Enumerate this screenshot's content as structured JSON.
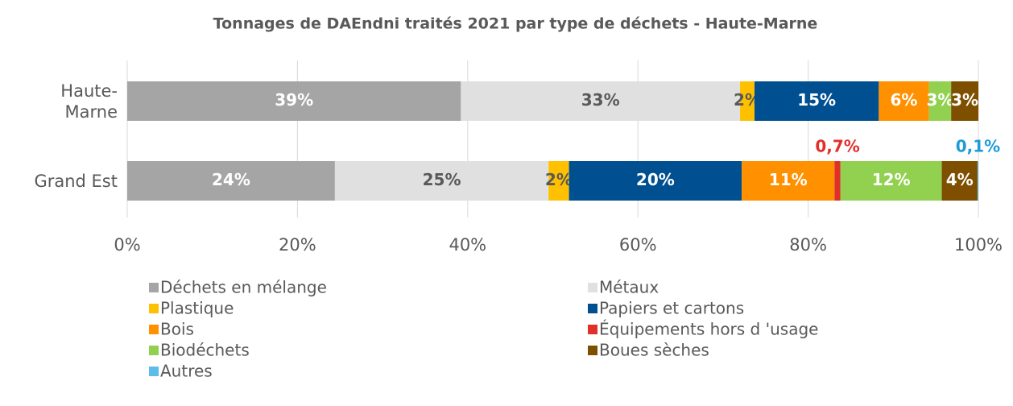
{
  "chart_data": {
    "type": "stacked-bar-horizontal",
    "title": "Tonnages de DAEndni traités 2021 par type de déchets - Haute-Marne",
    "categories": [
      "Haute-Marne",
      "Grand Est"
    ],
    "xlim": [
      0,
      100
    ],
    "xticks": [
      {
        "value": 0,
        "label": "0%"
      },
      {
        "value": 20,
        "label": "20%"
      },
      {
        "value": 40,
        "label": "40%"
      },
      {
        "value": 60,
        "label": "60%"
      },
      {
        "value": 80,
        "label": "80%"
      },
      {
        "value": 100,
        "label": "100%"
      }
    ],
    "grid": true,
    "legend": "bottom",
    "series": [
      {
        "name": "Déchets en mélange",
        "color": "#a5a5a5",
        "label_color": "#ffffff",
        "values": [
          39.2,
          24.4
        ],
        "value_labels": [
          "39%",
          "24%"
        ]
      },
      {
        "name": "Métaux",
        "color": "#e0e0e0",
        "label_color": "#595959",
        "values": [
          32.8,
          25.1
        ],
        "value_labels": [
          "33%",
          "25%"
        ]
      },
      {
        "name": "Plastique",
        "color": "#ffc000",
        "label_color": "#595959",
        "values": [
          1.7,
          2.4
        ],
        "value_labels": [
          "2%",
          "2%"
        ]
      },
      {
        "name": "Papiers et cartons",
        "color": "#004f91",
        "label_color": "#ffffff",
        "values": [
          14.6,
          20.3
        ],
        "value_labels": [
          "15%",
          "20%"
        ]
      },
      {
        "name": "Bois",
        "color": "#ff9000",
        "label_color": "#ffffff",
        "values": [
          5.9,
          10.9
        ],
        "value_labels": [
          "6%",
          "11%"
        ]
      },
      {
        "name": "Équipements hors d 'usage",
        "color": "#e0302a",
        "label_color": "#e0302a",
        "values": [
          0,
          0.7
        ],
        "value_labels": [
          null,
          "0,7%"
        ]
      },
      {
        "name": "Biodéchets",
        "color": "#92d050",
        "label_color": "#ffffff",
        "values": [
          2.6,
          11.9
        ],
        "value_labels": [
          "3%",
          "12%"
        ]
      },
      {
        "name": "Boues sèches",
        "color": "#7f4f00",
        "label_color": "#ffffff",
        "values": [
          3.2,
          4.2
        ],
        "value_labels": [
          "3%",
          "4%"
        ]
      },
      {
        "name": "Autres",
        "color": "#5bbde8",
        "label_color": "#1f9bd7",
        "values": [
          0,
          0.1
        ],
        "value_labels": [
          null,
          "0,1%"
        ]
      }
    ]
  }
}
